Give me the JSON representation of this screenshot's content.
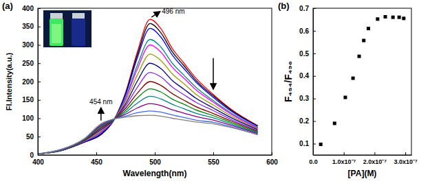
{
  "chart_data": [
    {
      "type": "line",
      "panel_label": "(a)",
      "x_label": "Wavelength(nm)",
      "y_label": "Fl.Intensity(a.u.)",
      "annotations": [
        "496 nm",
        "454 nm"
      ],
      "x": [
        400,
        420,
        440,
        454,
        465,
        475,
        485,
        496,
        505,
        515,
        525,
        535,
        550,
        565,
        588
      ],
      "series": [
        {
          "color": "#ff0000",
          "values": [
            3,
            12,
            35,
            55,
            95,
            170,
            280,
            370,
            345,
            290,
            250,
            210,
            165,
            125,
            80
          ]
        },
        {
          "color": "#000000",
          "values": [
            3,
            12,
            35,
            56,
            95,
            167,
            272,
            358,
            334,
            281,
            243,
            204,
            161,
            123,
            79
          ]
        },
        {
          "color": "#0000ff",
          "values": [
            3,
            12,
            36,
            58,
            95,
            164,
            264,
            345,
            322,
            272,
            235,
            199,
            157,
            120,
            78
          ]
        },
        {
          "color": "#008b8b",
          "values": [
            3,
            13,
            37,
            61,
            96,
            156,
            244,
            315,
            295,
            250,
            217,
            185,
            148,
            115,
            75
          ]
        },
        {
          "color": "#ff00ff",
          "values": [
            3,
            13,
            38,
            63,
            96,
            152,
            234,
            300,
            281,
            239,
            209,
            178,
            144,
            112,
            73
          ]
        },
        {
          "color": "#999900",
          "values": [
            3,
            13,
            39,
            66,
            96,
            146,
            217,
            275,
            258,
            221,
            194,
            166,
            136,
            107,
            71
          ]
        },
        {
          "color": "#000080",
          "values": [
            3,
            13,
            40,
            69,
            96,
            139,
            201,
            250,
            236,
            203,
            179,
            155,
            128,
            102,
            69
          ]
        },
        {
          "color": "#8a2be2",
          "values": [
            3,
            14,
            41,
            72,
            97,
            133,
            184,
            225,
            213,
            185,
            164,
            144,
            121,
            97,
            66
          ]
        },
        {
          "color": "#800000",
          "values": [
            3,
            14,
            41,
            74,
            97,
            127,
            168,
            200,
            190,
            167,
            149,
            132,
            113,
            93,
            64
          ]
        },
        {
          "color": "#008000",
          "values": [
            3,
            14,
            42,
            77,
            97,
            121,
            155,
            180,
            172,
            152,
            138,
            123,
            107,
            89,
            62
          ]
        },
        {
          "color": "#008080",
          "values": [
            3,
            14,
            43,
            79,
            97,
            116,
            141,
            160,
            153,
            138,
            126,
            114,
            101,
            85,
            60
          ]
        },
        {
          "color": "#800080",
          "values": [
            3,
            15,
            44,
            81,
            98,
            111,
            128,
            140,
            135,
            123,
            114,
            105,
            95,
            81,
            58
          ]
        },
        {
          "color": "#4169e1",
          "values": [
            3,
            15,
            45,
            84,
            98,
            106,
            115,
            120,
            117,
            109,
            102,
            95,
            89,
            77,
            56
          ]
        },
        {
          "color": "#808080",
          "values": [
            3,
            15,
            45,
            85,
            98,
            103,
            107,
            108,
            106,
            100,
            95,
            90,
            85,
            75,
            55
          ]
        }
      ],
      "xlim": [
        400,
        600
      ],
      "ylim": [
        0,
        400
      ],
      "xticks": [
        400,
        450,
        500,
        550,
        600
      ],
      "yticks": [
        0,
        50,
        100,
        150,
        200,
        250,
        300,
        350,
        400
      ]
    },
    {
      "type": "scatter",
      "panel_label": "(b)",
      "x_label": "[PA](M)",
      "y_label": "F₄₅₄/F₄₉₆",
      "marker": "square",
      "color": "#000000",
      "x": [
        2.5e-08,
        7e-08,
        1.05e-07,
        1.3e-07,
        1.5e-07,
        1.65e-07,
        1.8e-07,
        2.1e-07,
        2.35e-07,
        2.6e-07,
        2.8e-07,
        2.95e-07
      ],
      "values": [
        0.097,
        0.19,
        0.305,
        0.39,
        0.487,
        0.557,
        0.61,
        0.652,
        0.662,
        0.66,
        0.66,
        0.655
      ],
      "xlim": [
        0,
        3.2e-07
      ],
      "ylim": [
        0.05,
        0.7
      ],
      "xticks": [
        {
          "value": 0,
          "label": "0.0"
        },
        {
          "value": 1e-07,
          "label": "1.0x10⁻⁷"
        },
        {
          "value": 2e-07,
          "label": "2.0x10⁻⁷"
        },
        {
          "value": 3e-07,
          "label": "3.0x10⁻⁷"
        }
      ],
      "yticks": [
        0.1,
        0.2,
        0.3,
        0.4,
        0.5,
        0.6,
        0.7
      ]
    }
  ]
}
